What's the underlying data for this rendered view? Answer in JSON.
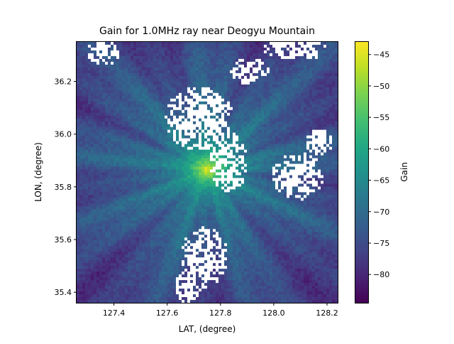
{
  "chart_data": {
    "type": "heatmap",
    "title": "Gain for 1.0MHz ray near Deogyu Mountain",
    "xlabel": "LAT, (degree)",
    "ylabel": "LON, (degree)",
    "colorbar_label": "Gain",
    "colormap": "viridis",
    "xlim": [
      127.26,
      128.24
    ],
    "ylim": [
      35.36,
      36.35
    ],
    "xticks": [
      127.4,
      127.6,
      127.8,
      128.0,
      128.2
    ],
    "yticks": [
      35.4,
      35.6,
      35.8,
      36.0,
      36.2
    ],
    "xtick_labels": [
      "127.4",
      "127.6",
      "127.8",
      "128.0",
      "128.2"
    ],
    "ytick_labels": [
      "35.4",
      "35.6",
      "35.8",
      "36.0",
      "36.2"
    ],
    "colorbar_range": [
      -84.5,
      -43
    ],
    "colorbar_ticks": [
      -80,
      -75,
      -70,
      -65,
      -60,
      -55,
      -50,
      -45
    ],
    "colorbar_tick_labels": [
      "−80",
      "−75",
      "−70",
      "−65",
      "−60",
      "−55",
      "−50",
      "−45"
    ],
    "peak": {
      "x": 127.75,
      "y": 35.865,
      "value": -43
    },
    "background_value": -68,
    "missing_value_color": "#ffffff",
    "missing_regions": [
      {
        "x": 127.72,
        "y": 36.06,
        "rx": 0.13,
        "ry": 0.12
      },
      {
        "x": 127.83,
        "y": 35.89,
        "rx": 0.07,
        "ry": 0.12
      },
      {
        "x": 128.09,
        "y": 35.84,
        "rx": 0.1,
        "ry": 0.09
      },
      {
        "x": 128.17,
        "y": 35.97,
        "rx": 0.05,
        "ry": 0.05
      },
      {
        "x": 127.74,
        "y": 35.53,
        "rx": 0.09,
        "ry": 0.12
      },
      {
        "x": 127.68,
        "y": 35.42,
        "rx": 0.05,
        "ry": 0.06
      },
      {
        "x": 127.91,
        "y": 36.24,
        "rx": 0.07,
        "ry": 0.05
      },
      {
        "x": 128.08,
        "y": 36.32,
        "rx": 0.12,
        "ry": 0.04
      },
      {
        "x": 127.36,
        "y": 36.31,
        "rx": 0.06,
        "ry": 0.05
      }
    ]
  }
}
